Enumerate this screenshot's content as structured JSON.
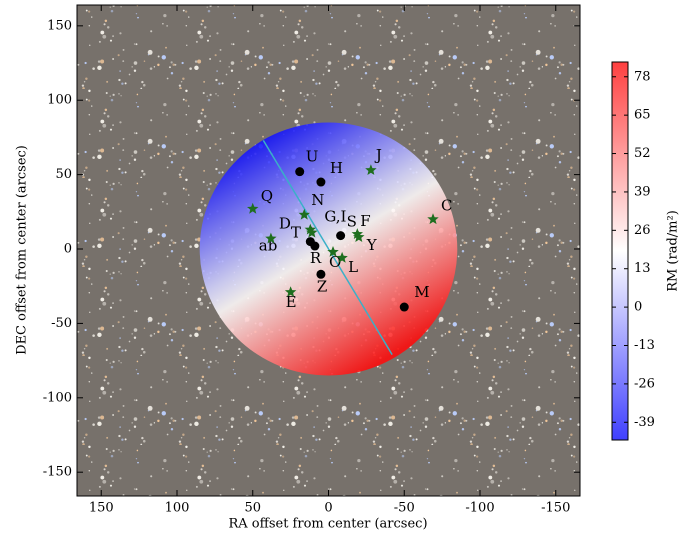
{
  "chart_data": {
    "type": "scatter",
    "xlabel": "RA offset from center (arcsec)",
    "ylabel": "DEC offset from center (arcsec)",
    "xlim": [
      166,
      -166
    ],
    "ylim": [
      -166,
      164
    ],
    "xticks": [
      150,
      100,
      50,
      0,
      -50,
      -100,
      -150
    ],
    "yticks": [
      150,
      100,
      50,
      0,
      -50,
      -100,
      -150
    ],
    "series": [
      {
        "marker": "circle",
        "color": "#000000",
        "labels": [
          "U",
          "H",
          "S",
          "ab",
          "R",
          "Z",
          "M"
        ],
        "x": [
          19,
          5,
          -8,
          12,
          9,
          5,
          -50
        ],
        "y": [
          52,
          45,
          9,
          5,
          2,
          -17,
          -39
        ]
      },
      {
        "marker": "star",
        "color": "#1f6e1f",
        "labels": [
          "J",
          "Q",
          "N",
          "G,I",
          "T",
          "D",
          "C",
          "F",
          "Y",
          "O",
          "L",
          "E"
        ],
        "x": [
          -28,
          50,
          16,
          12,
          11,
          38,
          -69,
          -19,
          -20,
          -3,
          -9,
          25
        ],
        "y": [
          53,
          27,
          23,
          13,
          11,
          7,
          20,
          10,
          8,
          -2,
          -6,
          -29
        ]
      }
    ],
    "disk": {
      "center": [
        0,
        0
      ],
      "radius": 85,
      "gradient_x": [
        43,
        -42
      ],
      "gradient_y": [
        73,
        -71
      ],
      "rm": [
        -40,
        80
      ]
    },
    "line": {
      "x": [
        43,
        -42
      ],
      "y": [
        73,
        -71
      ],
      "color": "#3ab0c8"
    },
    "colorbar": {
      "label": "RM (rad/m²)",
      "clim": [
        -45,
        83
      ],
      "ticks": [
        78,
        65,
        52,
        39,
        26,
        13,
        0,
        -13,
        -26,
        -39
      ],
      "colormap": "bwr"
    }
  }
}
